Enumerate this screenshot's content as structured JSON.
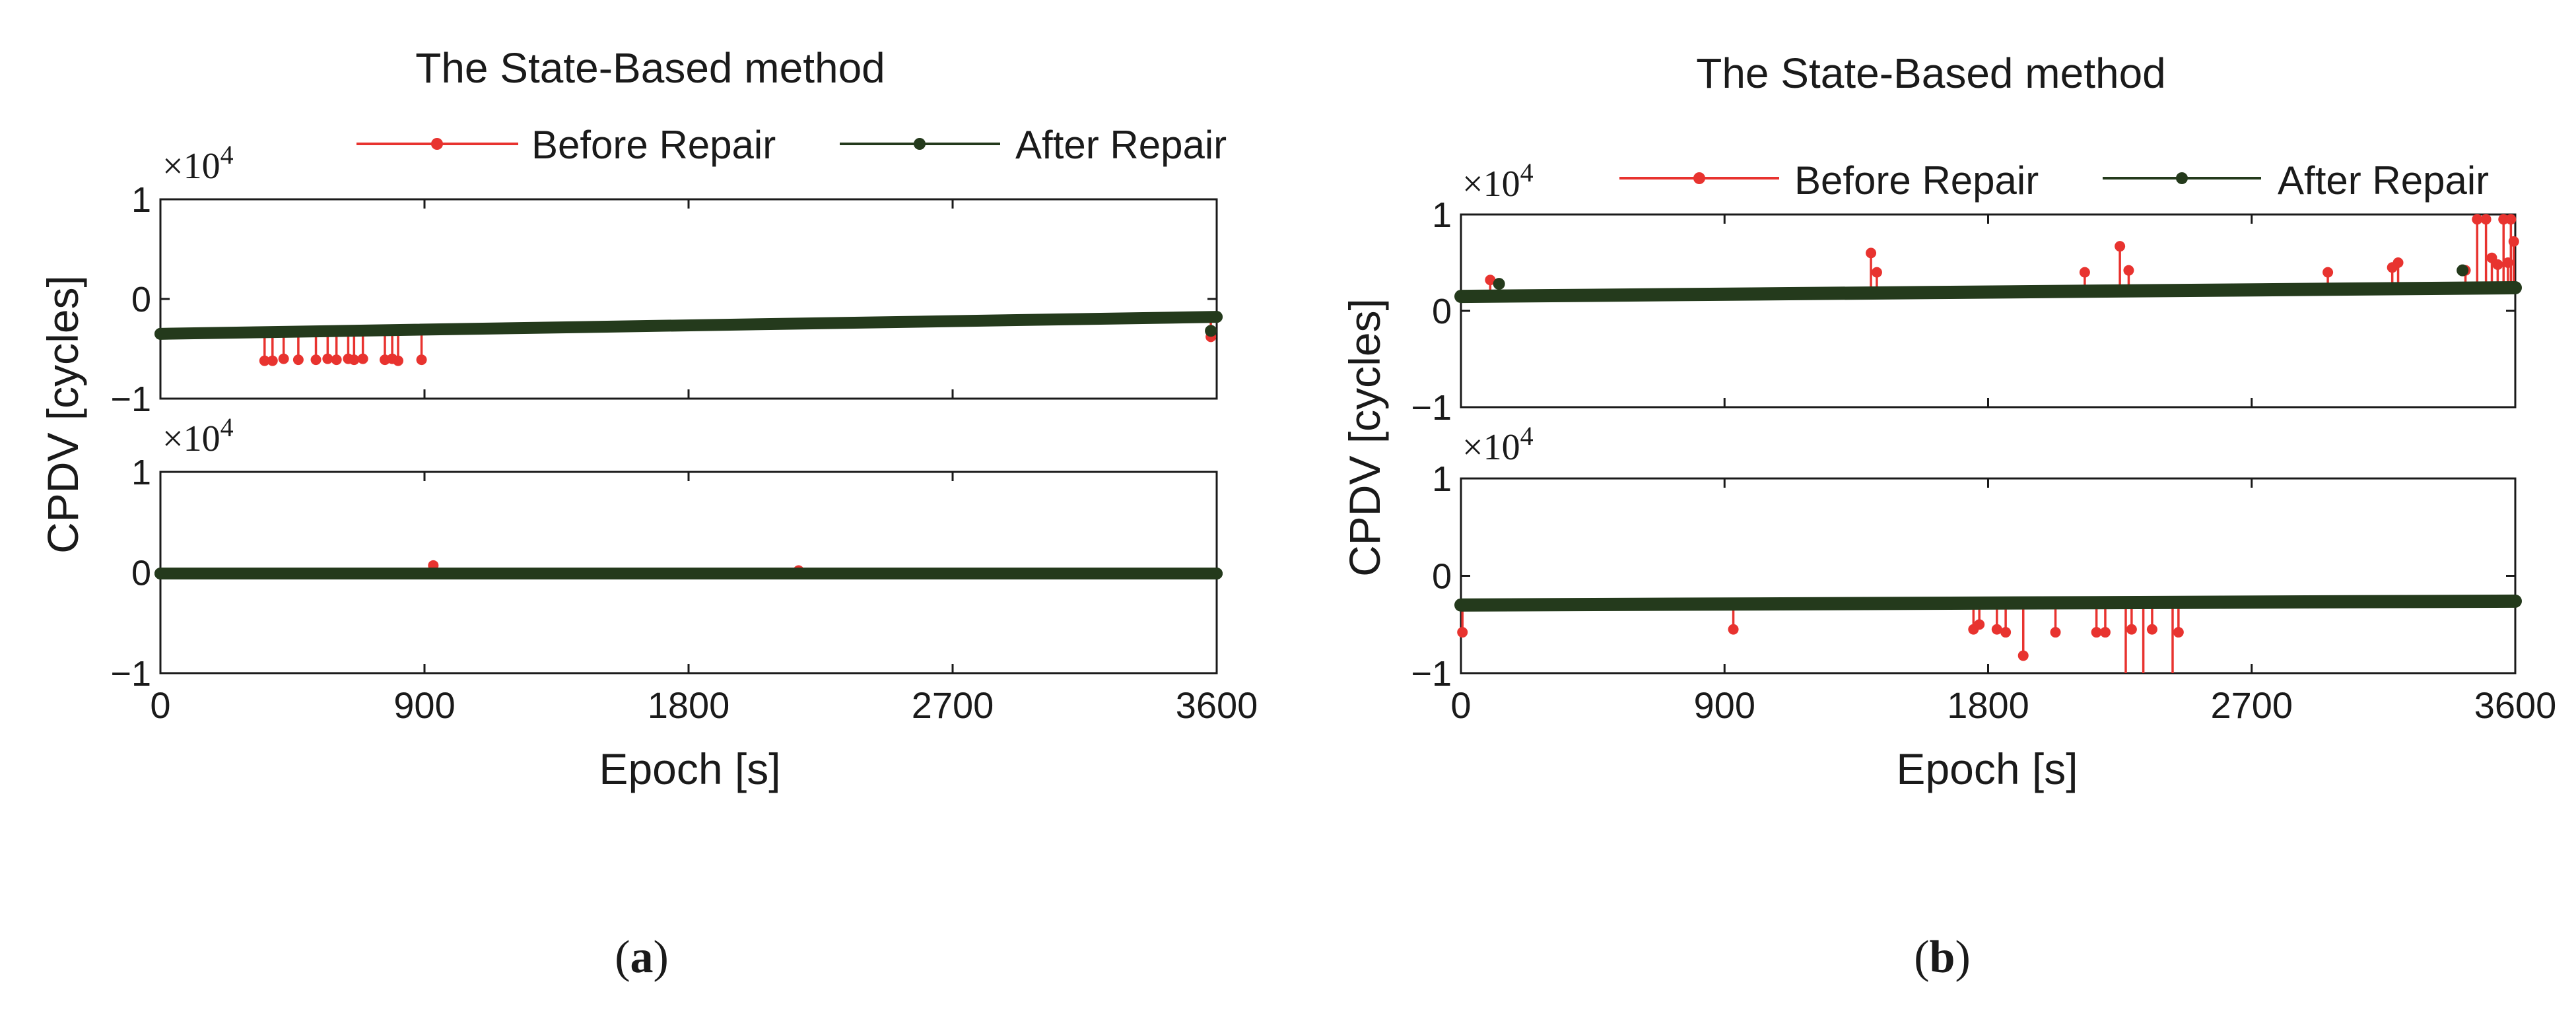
{
  "colors": {
    "before": "#e8332f",
    "after": "#243a1c",
    "axis": "#1a1a1a",
    "background": "#ffffff"
  },
  "legend": {
    "before": "Before Repair",
    "after": "After Repair"
  },
  "captions": {
    "a": "a",
    "b": "b"
  },
  "chart_data": [
    {
      "panel": "a",
      "type": "line",
      "title": "The State-Based method",
      "xlabel": "Epoch [s]",
      "ylabel": "CPDV [cycles]",
      "legend_entries": [
        "Before Repair",
        "After Repair"
      ],
      "legend_position": "top",
      "subplots": [
        {
          "multiplier": "×10",
          "exponent": "4",
          "ylim": [
            -1,
            1
          ],
          "yticks": [
            "1",
            "0",
            "−1"
          ],
          "xlim": [
            0,
            3600
          ],
          "after_repair": {
            "x": [
              0,
              3600
            ],
            "y": [
              -0.35,
              -0.18
            ]
          },
          "before_repair_spikes": [
            {
              "x": 355,
              "y": -0.62
            },
            {
              "x": 382,
              "y": -0.62
            },
            {
              "x": 420,
              "y": -0.6
            },
            {
              "x": 470,
              "y": -0.61
            },
            {
              "x": 530,
              "y": -0.61
            },
            {
              "x": 570,
              "y": -0.6
            },
            {
              "x": 600,
              "y": -0.61
            },
            {
              "x": 640,
              "y": -0.6
            },
            {
              "x": 660,
              "y": -0.61
            },
            {
              "x": 690,
              "y": -0.6
            },
            {
              "x": 765,
              "y": -0.61
            },
            {
              "x": 790,
              "y": -0.6
            },
            {
              "x": 810,
              "y": -0.62
            },
            {
              "x": 890,
              "y": -0.61
            },
            {
              "x": 3580,
              "y": -0.38
            }
          ],
          "after_repair_markers": [
            {
              "x": 3580,
              "y": -0.32
            }
          ]
        },
        {
          "multiplier": "×10",
          "exponent": "4",
          "ylim": [
            -1,
            1
          ],
          "yticks": [
            "1",
            "0",
            "−1"
          ],
          "xlim": [
            0,
            3600
          ],
          "xticks": [
            "0",
            "900",
            "1800",
            "2700",
            "3600"
          ],
          "after_repair": {
            "x": [
              0,
              3600
            ],
            "y": [
              -0.01,
              -0.01
            ]
          },
          "before_repair_spikes": [
            {
              "x": 930,
              "y": 0.07
            },
            {
              "x": 2175,
              "y": 0.02
            }
          ]
        }
      ]
    },
    {
      "panel": "b",
      "type": "line",
      "title": "The State-Based method",
      "xlabel": "Epoch [s]",
      "ylabel": "CPDV [cycles]",
      "legend_entries": [
        "Before Repair",
        "After Repair"
      ],
      "legend_position": "top",
      "subplots": [
        {
          "multiplier": "×10",
          "exponent": "4",
          "ylim": [
            -1,
            1
          ],
          "yticks": [
            "1",
            "0",
            "−1"
          ],
          "xlim": [
            0,
            3600
          ],
          "after_repair": {
            "x": [
              0,
              3600
            ],
            "y": [
              0.15,
              0.24
            ]
          },
          "before_repair_spikes": [
            {
              "x": 100,
              "y": 0.32
            },
            {
              "x": 1400,
              "y": 0.6
            },
            {
              "x": 1420,
              "y": 0.4
            },
            {
              "x": 2130,
              "y": 0.4
            },
            {
              "x": 2250,
              "y": 0.67
            },
            {
              "x": 2280,
              "y": 0.42
            },
            {
              "x": 2960,
              "y": 0.4
            },
            {
              "x": 3180,
              "y": 0.45
            },
            {
              "x": 3200,
              "y": 0.5
            },
            {
              "x": 3430,
              "y": 0.42
            },
            {
              "x": 3470,
              "y": 0.95
            },
            {
              "x": 3500,
              "y": 0.95
            },
            {
              "x": 3520,
              "y": 0.55
            },
            {
              "x": 3540,
              "y": 0.48
            },
            {
              "x": 3560,
              "y": 0.95
            },
            {
              "x": 3575,
              "y": 0.5
            },
            {
              "x": 3585,
              "y": 0.95
            },
            {
              "x": 3595,
              "y": 0.72
            }
          ],
          "after_repair_markers": [
            {
              "x": 3420,
              "y": 0.42
            },
            {
              "x": 130,
              "y": 0.28
            }
          ]
        },
        {
          "multiplier": "×10",
          "exponent": "4",
          "ylim": [
            -1,
            1
          ],
          "yticks": [
            "1",
            "0",
            "−1"
          ],
          "xlim": [
            0,
            3600
          ],
          "xticks": [
            "0",
            "900",
            "1800",
            "2700",
            "3600"
          ],
          "after_repair": {
            "x": [
              0,
              3600
            ],
            "y": [
              -0.3,
              -0.26
            ]
          },
          "before_repair_spikes": [
            {
              "x": 5,
              "y": -0.58
            },
            {
              "x": 930,
              "y": -0.55
            },
            {
              "x": 1750,
              "y": -0.55
            },
            {
              "x": 1770,
              "y": -0.5
            },
            {
              "x": 1830,
              "y": -0.55
            },
            {
              "x": 1860,
              "y": -0.58
            },
            {
              "x": 1920,
              "y": -0.82
            },
            {
              "x": 2030,
              "y": -0.58
            },
            {
              "x": 2170,
              "y": -0.58
            },
            {
              "x": 2200,
              "y": -0.58
            },
            {
              "x": 2270,
              "y": -1.0
            },
            {
              "x": 2290,
              "y": -0.55
            },
            {
              "x": 2330,
              "y": -1.0
            },
            {
              "x": 2360,
              "y": -0.55
            },
            {
              "x": 2430,
              "y": -1.0
            },
            {
              "x": 2450,
              "y": -0.58
            }
          ]
        }
      ]
    }
  ]
}
